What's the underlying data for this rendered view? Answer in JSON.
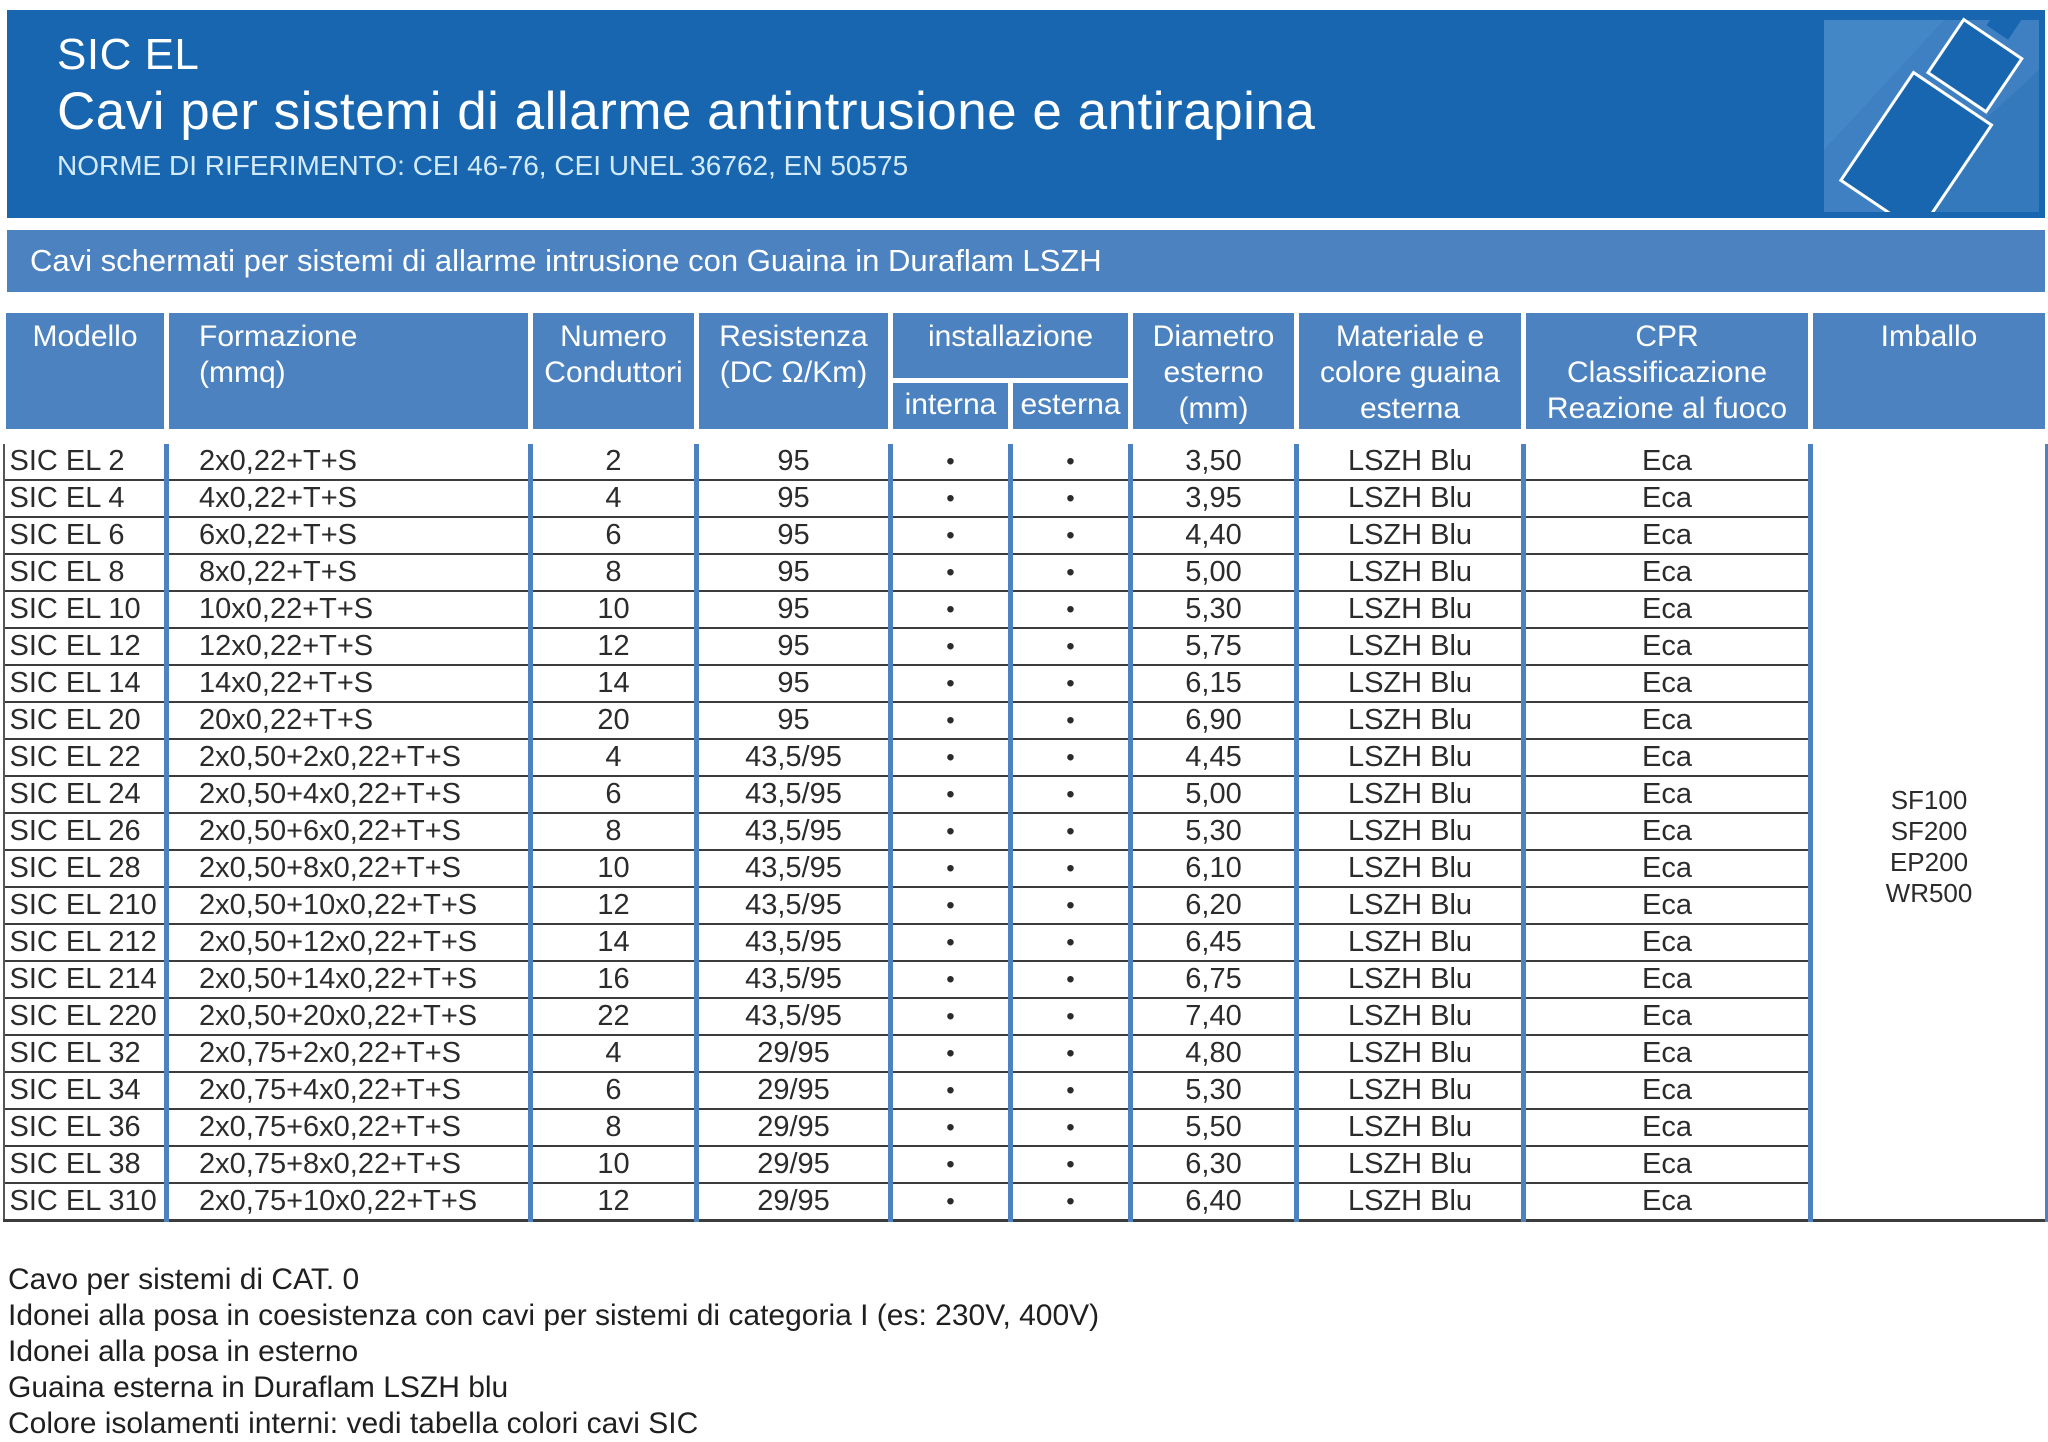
{
  "header": {
    "product": "SIC EL",
    "title": "Cavi per sistemi di allarme antintrusione e antirapina",
    "norms": "NORME DI RIFERIMENTO: CEI 46-76, CEI UNEL 36762, EN 50575"
  },
  "banner": "Cavi schermati per sistemi di allarme intrusione con Guaina in Duraflam LSZH",
  "table": {
    "columns": {
      "model": "Modello",
      "formation": "Formazione\n(mmq)",
      "conductors": "Numero\nConduttori",
      "resistance": "Resistenza\n(DC Ω/Km)",
      "installation": "installazione",
      "interna": "interna",
      "esterna": "esterna",
      "diameter": "Diametro\nesterno\n(mm)",
      "material": "Materiale e\ncolore guaina\nesterna",
      "cpr": "CPR\nClassificazione\nReazione al fuoco",
      "imballo": "Imballo"
    },
    "rows": [
      {
        "model": "SIC EL 2",
        "formation": "2x0,22+T+S",
        "conductors": "2",
        "resistance": "95",
        "interna": "•",
        "esterna": "•",
        "diameter": "3,50",
        "sheath": "LSZH Blu",
        "cpr": "Eca"
      },
      {
        "model": "SIC EL 4",
        "formation": "4x0,22+T+S",
        "conductors": "4",
        "resistance": "95",
        "interna": "•",
        "esterna": "•",
        "diameter": "3,95",
        "sheath": "LSZH Blu",
        "cpr": "Eca"
      },
      {
        "model": "SIC EL 6",
        "formation": "6x0,22+T+S",
        "conductors": "6",
        "resistance": "95",
        "interna": "•",
        "esterna": "•",
        "diameter": "4,40",
        "sheath": "LSZH Blu",
        "cpr": "Eca"
      },
      {
        "model": "SIC EL 8",
        "formation": "8x0,22+T+S",
        "conductors": "8",
        "resistance": "95",
        "interna": "•",
        "esterna": "•",
        "diameter": "5,00",
        "sheath": "LSZH Blu",
        "cpr": "Eca"
      },
      {
        "model": "SIC EL 10",
        "formation": "10x0,22+T+S",
        "conductors": "10",
        "resistance": "95",
        "interna": "•",
        "esterna": "•",
        "diameter": "5,30",
        "sheath": "LSZH Blu",
        "cpr": "Eca"
      },
      {
        "model": "SIC EL 12",
        "formation": "12x0,22+T+S",
        "conductors": "12",
        "resistance": "95",
        "interna": "•",
        "esterna": "•",
        "diameter": "5,75",
        "sheath": "LSZH Blu",
        "cpr": "Eca"
      },
      {
        "model": "SIC EL 14",
        "formation": "14x0,22+T+S",
        "conductors": "14",
        "resistance": "95",
        "interna": "•",
        "esterna": "•",
        "diameter": "6,15",
        "sheath": "LSZH Blu",
        "cpr": "Eca"
      },
      {
        "model": "SIC EL 20",
        "formation": "20x0,22+T+S",
        "conductors": "20",
        "resistance": "95",
        "interna": "•",
        "esterna": "•",
        "diameter": "6,90",
        "sheath": "LSZH Blu",
        "cpr": "Eca"
      },
      {
        "model": "SIC EL 22",
        "formation": "2x0,50+2x0,22+T+S",
        "conductors": "4",
        "resistance": "43,5/95",
        "interna": "•",
        "esterna": "•",
        "diameter": "4,45",
        "sheath": "LSZH Blu",
        "cpr": "Eca"
      },
      {
        "model": "SIC EL 24",
        "formation": "2x0,50+4x0,22+T+S",
        "conductors": "6",
        "resistance": "43,5/95",
        "interna": "•",
        "esterna": "•",
        "diameter": "5,00",
        "sheath": "LSZH Blu",
        "cpr": "Eca"
      },
      {
        "model": "SIC EL 26",
        "formation": "2x0,50+6x0,22+T+S",
        "conductors": "8",
        "resistance": "43,5/95",
        "interna": "•",
        "esterna": "•",
        "diameter": "5,30",
        "sheath": "LSZH Blu",
        "cpr": "Eca"
      },
      {
        "model": "SIC EL 28",
        "formation": "2x0,50+8x0,22+T+S",
        "conductors": "10",
        "resistance": "43,5/95",
        "interna": "•",
        "esterna": "•",
        "diameter": "6,10",
        "sheath": "LSZH Blu",
        "cpr": "Eca"
      },
      {
        "model": "SIC EL 210",
        "formation": "2x0,50+10x0,22+T+S",
        "conductors": "12",
        "resistance": "43,5/95",
        "interna": "•",
        "esterna": "•",
        "diameter": "6,20",
        "sheath": "LSZH Blu",
        "cpr": "Eca"
      },
      {
        "model": "SIC EL 212",
        "formation": "2x0,50+12x0,22+T+S",
        "conductors": "14",
        "resistance": "43,5/95",
        "interna": "•",
        "esterna": "•",
        "diameter": "6,45",
        "sheath": "LSZH Blu",
        "cpr": "Eca"
      },
      {
        "model": "SIC EL 214",
        "formation": "2x0,50+14x0,22+T+S",
        "conductors": "16",
        "resistance": "43,5/95",
        "interna": "•",
        "esterna": "•",
        "diameter": "6,75",
        "sheath": "LSZH Blu",
        "cpr": "Eca"
      },
      {
        "model": "SIC EL 220",
        "formation": "2x0,50+20x0,22+T+S",
        "conductors": "22",
        "resistance": "43,5/95",
        "interna": "•",
        "esterna": "•",
        "diameter": "7,40",
        "sheath": "LSZH Blu",
        "cpr": "Eca"
      },
      {
        "model": "SIC EL 32",
        "formation": "2x0,75+2x0,22+T+S",
        "conductors": "4",
        "resistance": "29/95",
        "interna": "•",
        "esterna": "•",
        "diameter": "4,80",
        "sheath": "LSZH Blu",
        "cpr": "Eca"
      },
      {
        "model": "SIC EL 34",
        "formation": "2x0,75+4x0,22+T+S",
        "conductors": "6",
        "resistance": "29/95",
        "interna": "•",
        "esterna": "•",
        "diameter": "5,30",
        "sheath": "LSZH Blu",
        "cpr": "Eca"
      },
      {
        "model": "SIC EL 36",
        "formation": "2x0,75+6x0,22+T+S",
        "conductors": "8",
        "resistance": "29/95",
        "interna": "•",
        "esterna": "•",
        "diameter": "5,50",
        "sheath": "LSZH Blu",
        "cpr": "Eca"
      },
      {
        "model": "SIC EL 38",
        "formation": "2x0,75+8x0,22+T+S",
        "conductors": "10",
        "resistance": "29/95",
        "interna": "•",
        "esterna": "•",
        "diameter": "6,30",
        "sheath": "LSZH Blu",
        "cpr": "Eca"
      },
      {
        "model": "SIC EL 310",
        "formation": "2x0,75+10x0,22+T+S",
        "conductors": "12",
        "resistance": "29/95",
        "interna": "•",
        "esterna": "•",
        "diameter": "6,40",
        "sheath": "LSZH Blu",
        "cpr": "Eca"
      }
    ],
    "imballo": [
      "SF100",
      "SF200",
      "EP200",
      "WR500"
    ]
  },
  "notes": [
    "Cavo per sistemi di CAT. 0",
    "Idonei alla posa in coesistenza con cavi per sistemi di categoria I (es: 230V, 400V)",
    "Idonei alla posa in esterno",
    "Guaina esterna in Duraflam LSZH blu",
    "Colore isolamenti interni: vedi tabella colori cavi SIC"
  ],
  "colors": {
    "brand_dark_blue": "#1866af",
    "brand_medium_blue": "#4d82c1",
    "row_line": "#3c3c3c"
  }
}
